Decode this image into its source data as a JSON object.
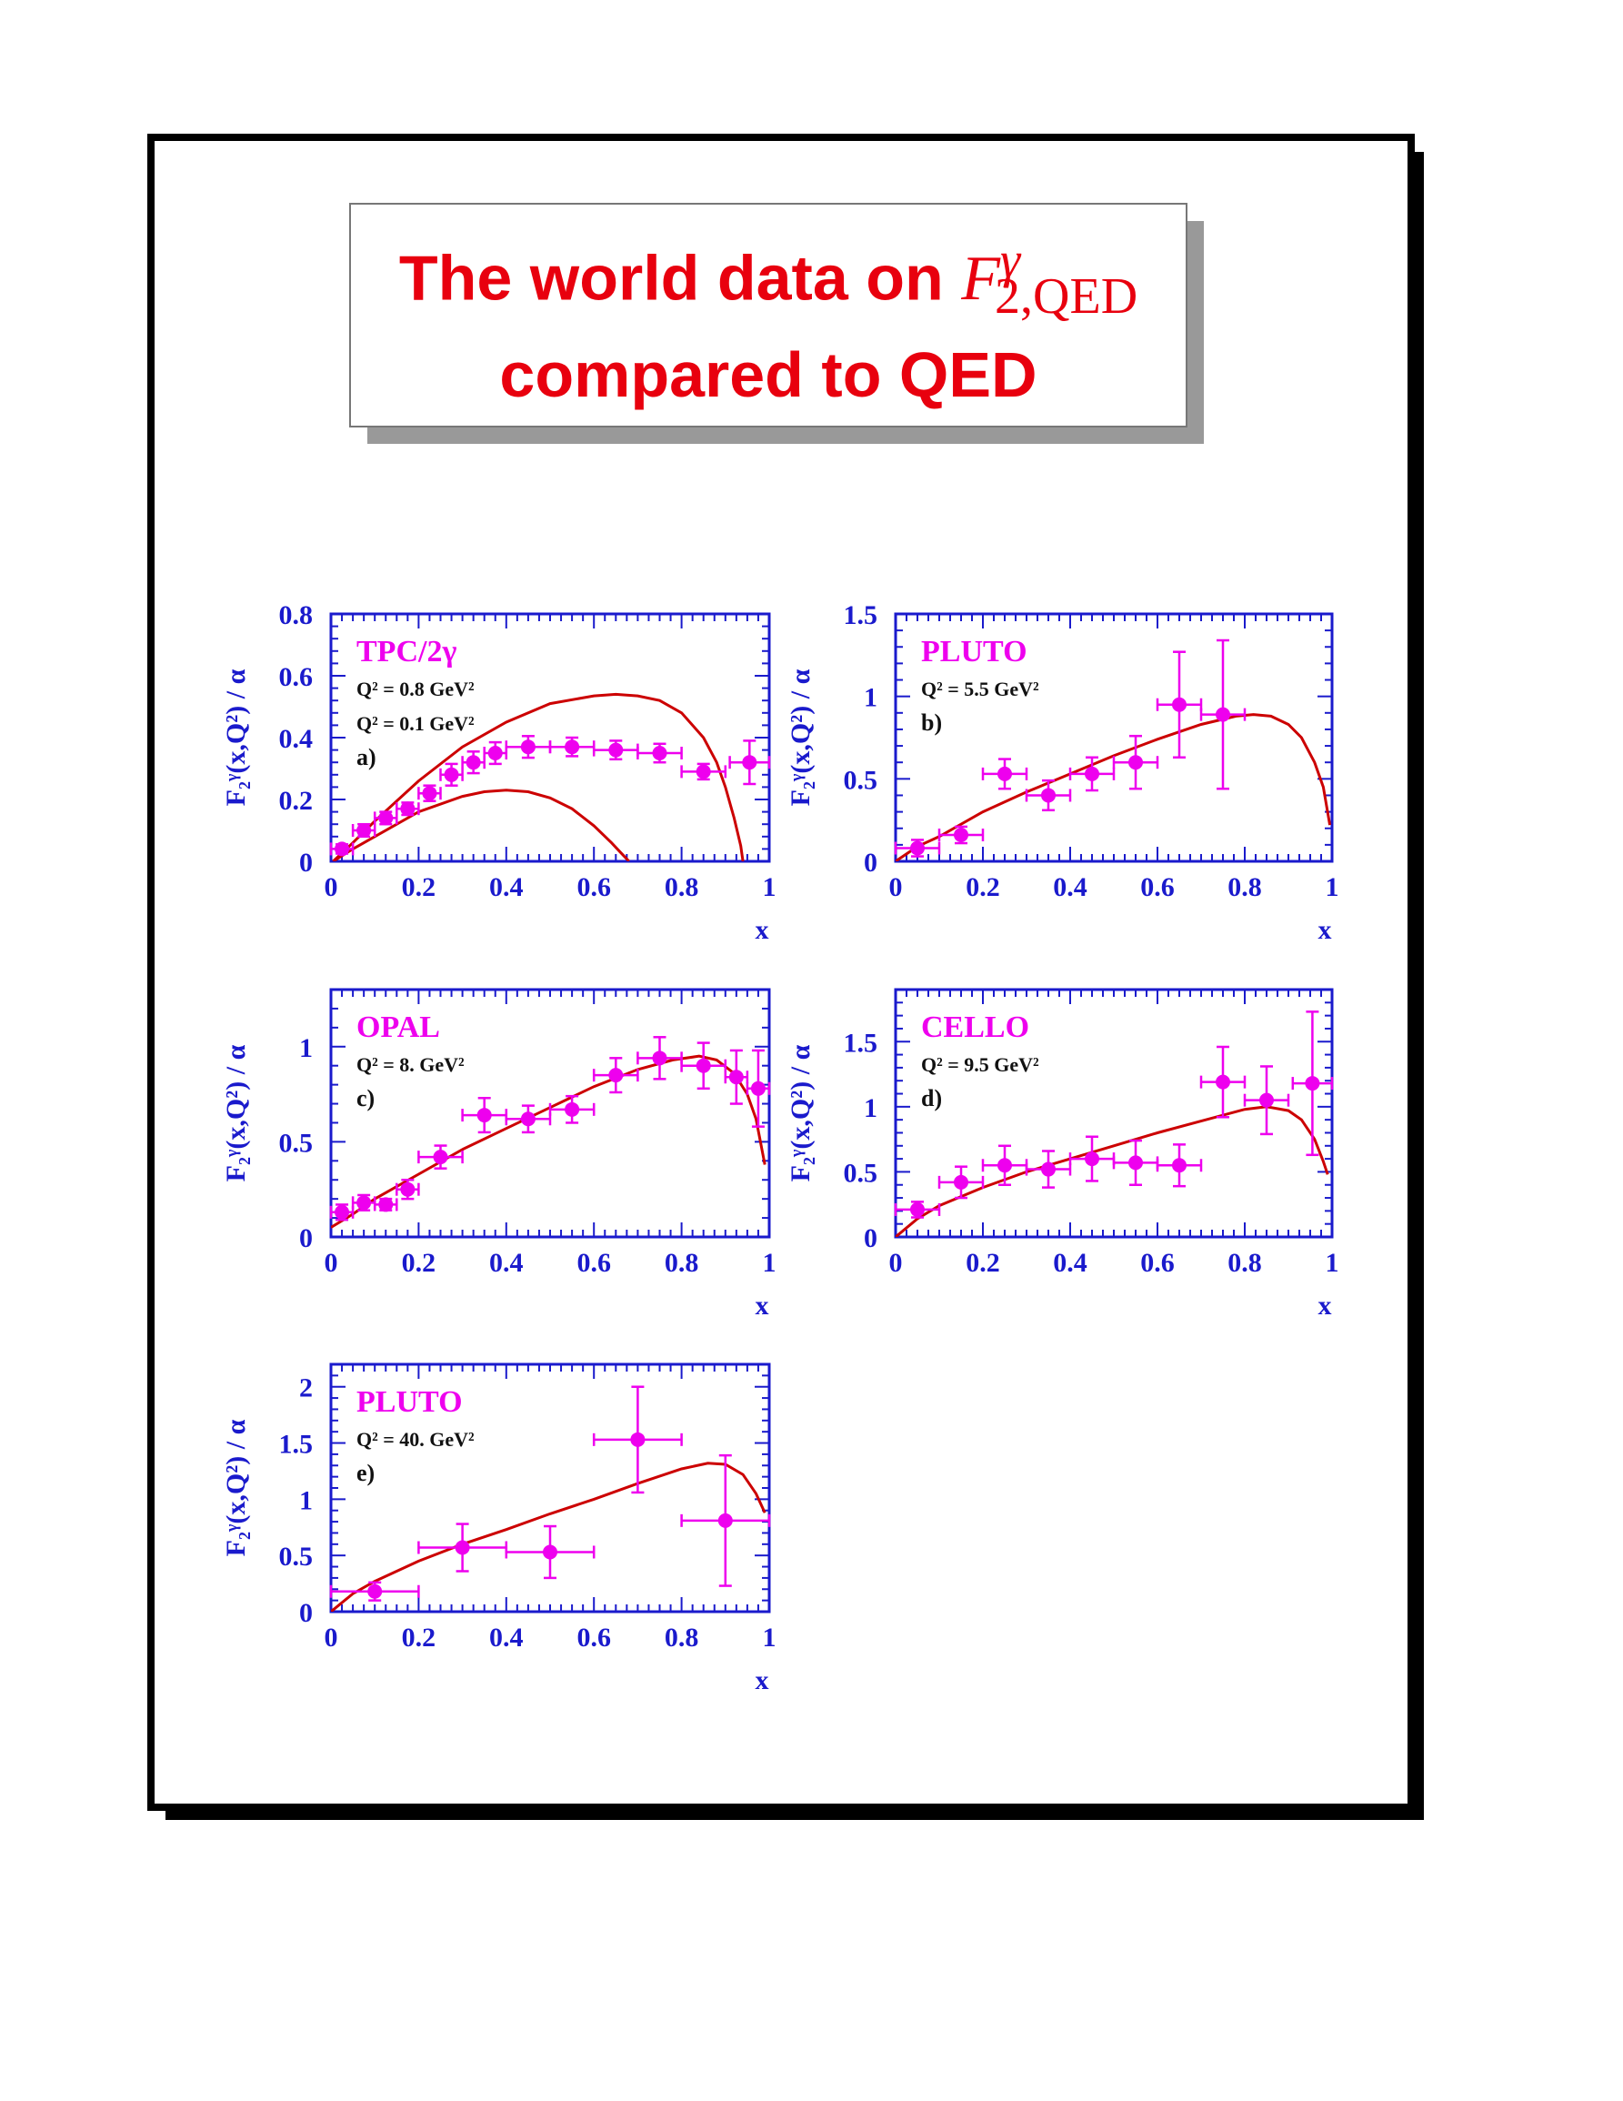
{
  "title": {
    "line1_text": "The world data on",
    "line1_math_base": "F",
    "line1_math_sub": "2,QED",
    "line1_math_sup": "γ",
    "line2_text": "compared to QED"
  },
  "colors": {
    "axis": "#1a1acc",
    "label_magenta": "#ee00ee",
    "curve": "#cc0000",
    "title": "#e8000e"
  },
  "chart_data": [
    {
      "type": "scatter",
      "experiment": "TPC/2γ",
      "q2_labels": [
        "Q² = 0.8 GeV²",
        "Q² = 0.1 GeV²"
      ],
      "panel": "a)",
      "xlabel": "x",
      "ylabel": "F₂ᵞ(x,Q²) / α",
      "xlim": [
        0,
        1
      ],
      "ylim": [
        0,
        0.8
      ],
      "xticks": [
        "0",
        "0.2",
        "0.4",
        "0.6",
        "0.8",
        "1"
      ],
      "yticks": [
        "0",
        "0.2",
        "0.4",
        "0.6",
        "0.8"
      ],
      "points": [
        {
          "x": 0.025,
          "y": 0.04,
          "xerr": 0.025,
          "yerr": 0.015
        },
        {
          "x": 0.075,
          "y": 0.1,
          "xerr": 0.025,
          "yerr": 0.02
        },
        {
          "x": 0.125,
          "y": 0.14,
          "xerr": 0.025,
          "yerr": 0.02
        },
        {
          "x": 0.175,
          "y": 0.17,
          "xerr": 0.025,
          "yerr": 0.02
        },
        {
          "x": 0.225,
          "y": 0.22,
          "xerr": 0.025,
          "yerr": 0.025
        },
        {
          "x": 0.275,
          "y": 0.28,
          "xerr": 0.025,
          "yerr": 0.035
        },
        {
          "x": 0.325,
          "y": 0.32,
          "xerr": 0.025,
          "yerr": 0.035
        },
        {
          "x": 0.375,
          "y": 0.35,
          "xerr": 0.025,
          "yerr": 0.035
        },
        {
          "x": 0.45,
          "y": 0.37,
          "xerr": 0.05,
          "yerr": 0.035
        },
        {
          "x": 0.55,
          "y": 0.37,
          "xerr": 0.05,
          "yerr": 0.03
        },
        {
          "x": 0.65,
          "y": 0.36,
          "xerr": 0.05,
          "yerr": 0.03
        },
        {
          "x": 0.75,
          "y": 0.35,
          "xerr": 0.05,
          "yerr": 0.03
        },
        {
          "x": 0.85,
          "y": 0.29,
          "xerr": 0.05,
          "yerr": 0.025
        },
        {
          "x": 0.955,
          "y": 0.32,
          "xerr": 0.045,
          "yerr": 0.07
        }
      ],
      "curves": [
        {
          "x": [
            0.005,
            0.05,
            0.1,
            0.2,
            0.3,
            0.4,
            0.5,
            0.6,
            0.65,
            0.7,
            0.75,
            0.8,
            0.85,
            0.88,
            0.9,
            0.92,
            0.935,
            0.94
          ],
          "y": [
            0.0,
            0.06,
            0.13,
            0.26,
            0.37,
            0.45,
            0.51,
            0.535,
            0.54,
            0.535,
            0.52,
            0.48,
            0.4,
            0.32,
            0.24,
            0.14,
            0.05,
            0.0
          ]
        },
        {
          "x": [
            0.005,
            0.05,
            0.1,
            0.2,
            0.3,
            0.35,
            0.4,
            0.45,
            0.5,
            0.55,
            0.6,
            0.64,
            0.66,
            0.68
          ],
          "y": [
            0.0,
            0.04,
            0.08,
            0.16,
            0.21,
            0.225,
            0.23,
            0.225,
            0.205,
            0.17,
            0.115,
            0.06,
            0.03,
            0.0
          ]
        }
      ]
    },
    {
      "type": "scatter",
      "experiment": "PLUTO",
      "q2_labels": [
        "Q² = 5.5 GeV²"
      ],
      "panel": "b)",
      "xlabel": "x",
      "ylabel": "F₂ᵞ(x,Q²) / α",
      "xlim": [
        0,
        1
      ],
      "ylim": [
        0,
        1.5
      ],
      "xticks": [
        "0",
        "0.2",
        "0.4",
        "0.6",
        "0.8",
        "1"
      ],
      "yticks": [
        "0",
        "0.5",
        "1",
        "1.5"
      ],
      "points": [
        {
          "x": 0.05,
          "y": 0.08,
          "xerr": 0.05,
          "yerr": 0.05
        },
        {
          "x": 0.15,
          "y": 0.16,
          "xerr": 0.05,
          "yerr": 0.05
        },
        {
          "x": 0.25,
          "y": 0.53,
          "xerr": 0.05,
          "yerr": 0.09
        },
        {
          "x": 0.35,
          "y": 0.4,
          "xerr": 0.05,
          "yerr": 0.09
        },
        {
          "x": 0.45,
          "y": 0.53,
          "xerr": 0.05,
          "yerr": 0.1
        },
        {
          "x": 0.55,
          "y": 0.6,
          "xerr": 0.05,
          "yerr": 0.16
        },
        {
          "x": 0.65,
          "y": 0.95,
          "xerr": 0.05,
          "yerr": 0.32
        },
        {
          "x": 0.75,
          "y": 0.89,
          "xerr": 0.05,
          "yerr": 0.45
        }
      ],
      "curves": [
        {
          "x": [
            0.0,
            0.05,
            0.1,
            0.2,
            0.3,
            0.4,
            0.5,
            0.6,
            0.7,
            0.78,
            0.82,
            0.86,
            0.9,
            0.93,
            0.96,
            0.98,
            0.995
          ],
          "y": [
            0.0,
            0.09,
            0.15,
            0.3,
            0.42,
            0.53,
            0.64,
            0.74,
            0.83,
            0.88,
            0.89,
            0.88,
            0.83,
            0.75,
            0.6,
            0.45,
            0.22
          ]
        }
      ]
    },
    {
      "type": "scatter",
      "experiment": "OPAL",
      "q2_labels": [
        "Q² = 8. GeV²"
      ],
      "panel": "c)",
      "xlabel": "x",
      "ylabel": "F₂ᵞ(x,Q²) / α",
      "xlim": [
        0,
        1
      ],
      "ylim": [
        0,
        1.3
      ],
      "xticks": [
        "0",
        "0.2",
        "0.4",
        "0.6",
        "0.8",
        "1"
      ],
      "yticks": [
        "0",
        "0.5",
        "1"
      ],
      "points": [
        {
          "x": 0.025,
          "y": 0.13,
          "xerr": 0.025,
          "yerr": 0.04
        },
        {
          "x": 0.075,
          "y": 0.18,
          "xerr": 0.025,
          "yerr": 0.04
        },
        {
          "x": 0.125,
          "y": 0.17,
          "xerr": 0.025,
          "yerr": 0.03
        },
        {
          "x": 0.175,
          "y": 0.25,
          "xerr": 0.025,
          "yerr": 0.05
        },
        {
          "x": 0.25,
          "y": 0.42,
          "xerr": 0.05,
          "yerr": 0.06
        },
        {
          "x": 0.35,
          "y": 0.64,
          "xerr": 0.05,
          "yerr": 0.09
        },
        {
          "x": 0.45,
          "y": 0.62,
          "xerr": 0.05,
          "yerr": 0.07
        },
        {
          "x": 0.55,
          "y": 0.67,
          "xerr": 0.05,
          "yerr": 0.07
        },
        {
          "x": 0.65,
          "y": 0.85,
          "xerr": 0.05,
          "yerr": 0.09
        },
        {
          "x": 0.75,
          "y": 0.94,
          "xerr": 0.05,
          "yerr": 0.11
        },
        {
          "x": 0.85,
          "y": 0.9,
          "xerr": 0.05,
          "yerr": 0.12
        },
        {
          "x": 0.925,
          "y": 0.84,
          "xerr": 0.025,
          "yerr": 0.14
        },
        {
          "x": 0.975,
          "y": 0.78,
          "xerr": 0.025,
          "yerr": 0.2
        }
      ],
      "curves": [
        {
          "x": [
            0.0,
            0.05,
            0.1,
            0.2,
            0.3,
            0.4,
            0.5,
            0.6,
            0.7,
            0.78,
            0.84,
            0.88,
            0.92,
            0.95,
            0.97,
            0.99
          ],
          "y": [
            0.05,
            0.12,
            0.2,
            0.33,
            0.46,
            0.57,
            0.68,
            0.79,
            0.88,
            0.93,
            0.95,
            0.93,
            0.86,
            0.75,
            0.62,
            0.38
          ]
        }
      ]
    },
    {
      "type": "scatter",
      "experiment": "CELLO",
      "q2_labels": [
        "Q² = 9.5 GeV²"
      ],
      "panel": "d)",
      "xlabel": "x",
      "ylabel": "F₂ᵞ(x,Q²) / α",
      "xlim": [
        0,
        1
      ],
      "ylim": [
        0,
        1.9
      ],
      "xticks": [
        "0",
        "0.2",
        "0.4",
        "0.6",
        "0.8",
        "1"
      ],
      "yticks": [
        "0",
        "0.5",
        "1",
        "1.5"
      ],
      "points": [
        {
          "x": 0.05,
          "y": 0.21,
          "xerr": 0.05,
          "yerr": 0.06
        },
        {
          "x": 0.15,
          "y": 0.42,
          "xerr": 0.05,
          "yerr": 0.12
        },
        {
          "x": 0.25,
          "y": 0.55,
          "xerr": 0.05,
          "yerr": 0.15
        },
        {
          "x": 0.35,
          "y": 0.52,
          "xerr": 0.05,
          "yerr": 0.14
        },
        {
          "x": 0.45,
          "y": 0.6,
          "xerr": 0.05,
          "yerr": 0.17
        },
        {
          "x": 0.55,
          "y": 0.57,
          "xerr": 0.05,
          "yerr": 0.17
        },
        {
          "x": 0.65,
          "y": 0.55,
          "xerr": 0.05,
          "yerr": 0.16
        },
        {
          "x": 0.75,
          "y": 1.19,
          "xerr": 0.05,
          "yerr": 0.27
        },
        {
          "x": 0.85,
          "y": 1.05,
          "xerr": 0.05,
          "yerr": 0.26
        },
        {
          "x": 0.955,
          "y": 1.18,
          "xerr": 0.045,
          "yerr": 0.55
        }
      ],
      "curves": [
        {
          "x": [
            0.0,
            0.05,
            0.1,
            0.2,
            0.3,
            0.4,
            0.5,
            0.6,
            0.7,
            0.8,
            0.85,
            0.9,
            0.93,
            0.96,
            0.98,
            0.99
          ],
          "y": [
            0.0,
            0.14,
            0.24,
            0.38,
            0.5,
            0.6,
            0.7,
            0.8,
            0.89,
            0.98,
            1.0,
            0.97,
            0.9,
            0.75,
            0.58,
            0.48
          ]
        }
      ]
    },
    {
      "type": "scatter",
      "experiment": "PLUTO",
      "q2_labels": [
        "Q² = 40. GeV²"
      ],
      "panel": "e)",
      "xlabel": "x",
      "ylabel": "F₂ᵞ(x,Q²) / α",
      "xlim": [
        0,
        1
      ],
      "ylim": [
        0,
        2.2
      ],
      "xticks": [
        "0",
        "0.2",
        "0.4",
        "0.6",
        "0.8",
        "1"
      ],
      "yticks": [
        "0",
        "0.5",
        "1",
        "1.5",
        "2"
      ],
      "points": [
        {
          "x": 0.1,
          "y": 0.18,
          "xerr": 0.1,
          "yerr": 0.08
        },
        {
          "x": 0.3,
          "y": 0.57,
          "xerr": 0.1,
          "yerr": 0.21
        },
        {
          "x": 0.5,
          "y": 0.53,
          "xerr": 0.1,
          "yerr": 0.23
        },
        {
          "x": 0.7,
          "y": 1.53,
          "xerr": 0.1,
          "yerr": 0.47
        },
        {
          "x": 0.9,
          "y": 0.81,
          "xerr": 0.1,
          "yerr": 0.58
        }
      ],
      "curves": [
        {
          "x": [
            0.0,
            0.05,
            0.1,
            0.2,
            0.3,
            0.4,
            0.5,
            0.6,
            0.7,
            0.8,
            0.86,
            0.9,
            0.94,
            0.97,
            0.99
          ],
          "y": [
            0.0,
            0.16,
            0.27,
            0.45,
            0.6,
            0.73,
            0.87,
            1.0,
            1.14,
            1.27,
            1.32,
            1.31,
            1.22,
            1.05,
            0.88
          ]
        }
      ]
    }
  ]
}
